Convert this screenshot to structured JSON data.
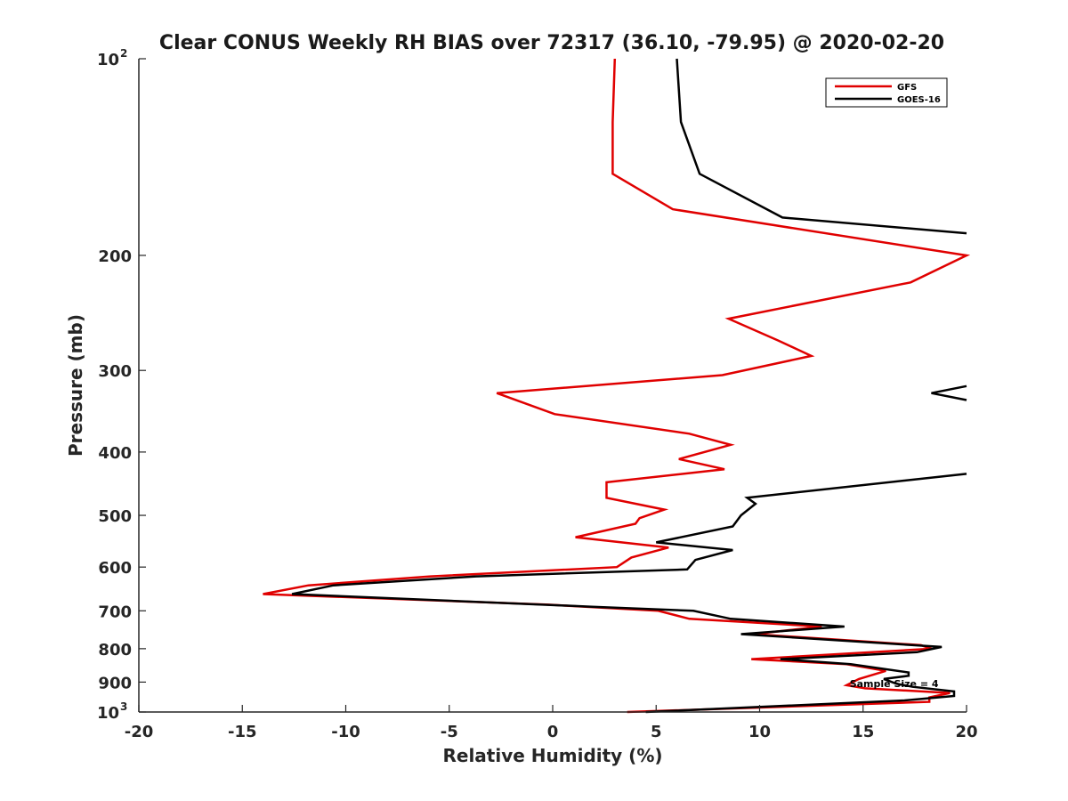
{
  "chart_data": {
    "type": "line",
    "title": "Clear CONUS Weekly RH BIAS over 72317 (36.10, -79.95) @ 2020-02-20",
    "xlabel": "Relative Humidity (%)",
    "ylabel": "Pressure (mb)",
    "xlim": [
      -20,
      20
    ],
    "ylim": [
      100,
      1000
    ],
    "yscale": "log",
    "y_reversed": true,
    "grid": false,
    "legend_position": "top-right",
    "x_ticks": [
      "-20",
      "-15",
      "-10",
      "-5",
      "0",
      "5",
      "10",
      "15",
      "20"
    ],
    "y_ticks": [
      {
        "value": 100,
        "base": "10",
        "exp": "2"
      },
      {
        "value": 200,
        "label": "200"
      },
      {
        "value": 300,
        "label": "300"
      },
      {
        "value": 400,
        "label": "400"
      },
      {
        "value": 500,
        "label": "500"
      },
      {
        "value": 600,
        "label": "600"
      },
      {
        "value": 700,
        "label": "700"
      },
      {
        "value": 800,
        "label": "800"
      },
      {
        "value": 900,
        "label": "900"
      },
      {
        "value": 1000,
        "base": "10",
        "exp": "3"
      }
    ],
    "series": [
      {
        "name": "GFS",
        "color": "#e00000",
        "points": [
          [
            3.0,
            100
          ],
          [
            2.9,
            125
          ],
          [
            2.9,
            150
          ],
          [
            5.8,
            170
          ],
          [
            20.0,
            200
          ],
          [
            17.3,
            220
          ],
          [
            8.5,
            250
          ],
          [
            10.9,
            270
          ],
          [
            12.5,
            285
          ],
          [
            8.2,
            305
          ],
          [
            -2.7,
            325
          ],
          [
            0.1,
            350
          ],
          [
            6.6,
            375
          ],
          [
            8.6,
            390
          ],
          [
            6.1,
            410
          ],
          [
            8.3,
            425
          ],
          [
            2.6,
            445
          ],
          [
            2.6,
            470
          ],
          [
            5.4,
            490
          ],
          [
            4.2,
            505
          ],
          [
            4.0,
            515
          ],
          [
            1.1,
            540
          ],
          [
            5.6,
            560
          ],
          [
            3.8,
            580
          ],
          [
            3.1,
            600
          ],
          [
            -5.9,
            620
          ],
          [
            -11.8,
            640
          ],
          [
            -14.0,
            660
          ],
          [
            -0.2,
            685
          ],
          [
            5.1,
            700
          ],
          [
            6.6,
            720
          ],
          [
            13.0,
            740
          ],
          [
            9.7,
            760
          ],
          [
            17.8,
            790
          ],
          [
            18.3,
            800
          ],
          [
            9.6,
            830
          ],
          [
            14.2,
            845
          ],
          [
            16.1,
            865
          ],
          [
            14.8,
            890
          ],
          [
            14.2,
            910
          ],
          [
            15.1,
            920
          ],
          [
            19.2,
            935
          ],
          [
            18.2,
            950
          ],
          [
            18.2,
            965
          ],
          [
            3.6,
            1000
          ]
        ]
      },
      {
        "name": "GOES-16",
        "color": "#000000",
        "points": [
          [
            6.0,
            100
          ],
          [
            6.2,
            125
          ],
          [
            7.1,
            150
          ],
          [
            11.1,
            175
          ],
          [
            20.0,
            185
          ],
          null,
          [
            20.0,
            317
          ],
          [
            18.3,
            325
          ],
          [
            20.0,
            333
          ],
          null,
          [
            20.0,
            432
          ],
          [
            9.4,
            470
          ],
          [
            9.8,
            480
          ],
          [
            9.1,
            500
          ],
          [
            8.7,
            520
          ],
          [
            5.0,
            550
          ],
          [
            8.7,
            565
          ],
          [
            6.9,
            585
          ],
          [
            6.5,
            605
          ],
          [
            -3.7,
            620
          ],
          [
            -10.6,
            640
          ],
          [
            -12.6,
            660
          ],
          [
            1.9,
            690
          ],
          [
            6.8,
            700
          ],
          [
            8.6,
            720
          ],
          [
            14.1,
            740
          ],
          [
            9.1,
            760
          ],
          [
            18.8,
            795
          ],
          [
            17.6,
            810
          ],
          [
            11.0,
            830
          ],
          [
            14.4,
            845
          ],
          [
            17.2,
            870
          ],
          [
            17.2,
            880
          ],
          [
            16.0,
            890
          ],
          [
            16.6,
            905
          ],
          [
            17.4,
            915
          ],
          [
            19.4,
            930
          ],
          [
            19.4,
            945
          ],
          [
            17.0,
            960
          ],
          [
            4.5,
            1000
          ]
        ]
      }
    ],
    "annotation": {
      "text": "Sample Size = 4",
      "x": 16.5,
      "y": 904
    }
  }
}
